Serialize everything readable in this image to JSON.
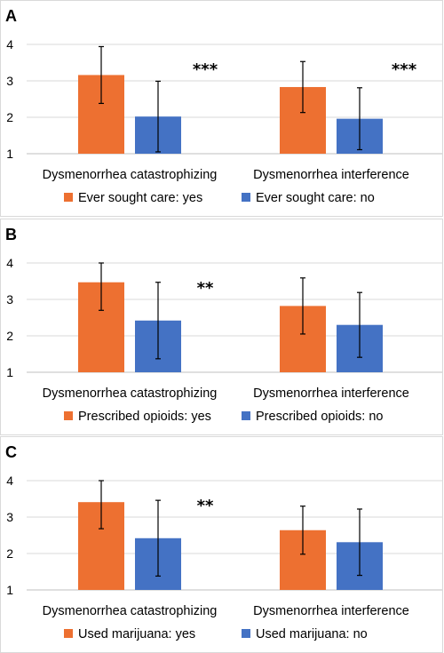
{
  "colors": {
    "yes": "#ED7031",
    "no": "#4472C4"
  },
  "chart_data": [
    {
      "type": "bar",
      "panel": "A",
      "categories": [
        "Dysmenorrhea catastrophizing",
        "Dysmenorrhea interference"
      ],
      "ylim": [
        1,
        4
      ],
      "yticks": [
        "1",
        "2",
        "3",
        "4"
      ],
      "grid": true,
      "legend_position": "bottom",
      "series": [
        {
          "name": "Ever sought care: yes",
          "values": [
            3.16,
            2.83
          ],
          "err": [
            0.78,
            0.7
          ]
        },
        {
          "name": "Ever sought care: no",
          "values": [
            2.02,
            1.96
          ],
          "err": [
            0.97,
            0.85
          ]
        }
      ],
      "annotations": [
        "***",
        "***"
      ]
    },
    {
      "type": "bar",
      "panel": "B",
      "categories": [
        "Dysmenorrhea catastrophizing",
        "Dysmenorrhea interference"
      ],
      "ylim": [
        1,
        4
      ],
      "yticks": [
        "1",
        "2",
        "3",
        "4"
      ],
      "grid": true,
      "legend_position": "bottom",
      "series": [
        {
          "name": "Prescribed opioids: yes",
          "values": [
            3.47,
            2.82
          ],
          "err": [
            0.77,
            0.77
          ]
        },
        {
          "name": "Prescribed opioids: no",
          "values": [
            2.42,
            2.3
          ],
          "err": [
            1.05,
            0.89
          ]
        }
      ],
      "annotations": [
        "**",
        ""
      ]
    },
    {
      "type": "bar",
      "panel": "C",
      "categories": [
        "Dysmenorrhea catastrophizing",
        "Dysmenorrhea interference"
      ],
      "ylim": [
        1,
        4
      ],
      "yticks": [
        "1",
        "2",
        "3",
        "4"
      ],
      "grid": true,
      "legend_position": "bottom",
      "series": [
        {
          "name": "Used marijuana: yes",
          "values": [
            3.41,
            2.64
          ],
          "err": [
            0.73,
            0.66
          ]
        },
        {
          "name": "Used marijuana: no",
          "values": [
            2.42,
            2.31
          ],
          "err": [
            1.04,
            0.91
          ]
        }
      ],
      "annotations": [
        "**",
        ""
      ]
    }
  ]
}
